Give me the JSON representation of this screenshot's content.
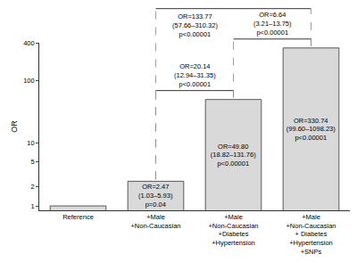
{
  "chart_data": {
    "type": "bar",
    "y_label": "OR",
    "categories": [
      "Reference",
      "+Male\n+Non-Caucasian",
      "+Male\n+Non-Caucasian\n+Diabetes\n+Hypertension",
      "+Male\n+Non-Caucasian\n+ Diabetes\n+Hypertension\n+SNPs"
    ],
    "values": [
      1,
      2.47,
      49.8,
      330.74
    ],
    "value_labels": [
      null,
      "OR=2.47\n(1.03–5.93)\np=0.04",
      "OR=49.80\n(18.82–131.76)\np<0.00001",
      "OR=330.74\n(99.60–1098.23)\np<0.00001"
    ],
    "data_labels": true,
    "color": "#d9d9d9",
    "log": "y",
    "ylim": [
      0.85,
      400
    ],
    "yticks": [
      1,
      2,
      5,
      10,
      100,
      400
    ],
    "grid": false,
    "annotations": [
      {
        "from": "+Male\n+Non-Caucasian",
        "to": "+Male\n+Non-Caucasian\n+Diabetes\n+Hypertension",
        "text": "OR=20.14\n(12.94–31.35)\np<0.00001"
      },
      {
        "from": "+Male\n+Non-Caucasian\n+Diabetes\n+Hypertension",
        "to": "+Male\n+Non-Caucasian\n+ Diabetes\n+Hypertension\n+SNPs",
        "text": "OR=6.64\n(3.21–13.75)\np<0.00001"
      },
      {
        "from": "+Male\n+Non-Caucasian",
        "to": "+Male\n+Non-Caucasian\n+ Diabetes\n+Hypertension\n+SNPs",
        "text": "OR=133.77\n(57.66–310.32)\np<0.00001"
      }
    ]
  }
}
